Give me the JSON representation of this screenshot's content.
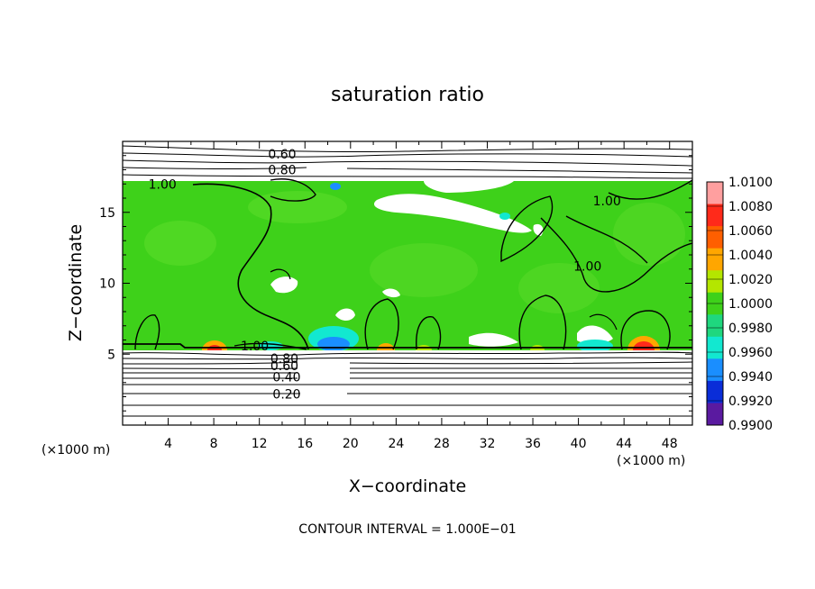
{
  "chart_data": {
    "type": "heatmap",
    "title": "saturation ratio",
    "xlabel": "X−coordinate",
    "ylabel": "Z−coordinate",
    "x_unit_left": "(×1000 m)",
    "x_unit_right": "(×1000 m)",
    "footer": "CONTOUR INTERVAL = 1.000E−01",
    "xlim": [
      0,
      50
    ],
    "ylim": [
      0,
      20
    ],
    "x_ticks": [
      4,
      8,
      12,
      16,
      20,
      24,
      28,
      32,
      36,
      40,
      44,
      48
    ],
    "y_ticks": [
      5,
      10,
      15
    ],
    "grid": false,
    "colorbar": {
      "range": [
        0.99,
        1.01
      ],
      "labels": [
        "1.0100",
        "1.0080",
        "1.0060",
        "1.0040",
        "1.0020",
        "1.0000",
        "0.9980",
        "0.9960",
        "0.9940",
        "0.9920",
        "0.9900"
      ],
      "colors": [
        "#ff9f9f",
        "#ff2a1a",
        "#ff5f00",
        "#ffa600",
        "#b4e600",
        "#3ed11a",
        "#1fd77e",
        "#12e8d0",
        "#1a8eff",
        "#0a2dd8",
        "#5a1aa0"
      ]
    },
    "contour_labels": [
      {
        "text": "0.60",
        "x": 14.0,
        "z": 19.1
      },
      {
        "text": "0.80",
        "x": 14.0,
        "z": 18.0
      },
      {
        "text": "1.00",
        "x": 3.5,
        "z": 17.0
      },
      {
        "text": "1.00",
        "x": 42.5,
        "z": 15.8
      },
      {
        "text": "1.00",
        "x": 40.8,
        "z": 11.2
      },
      {
        "text": "1.00",
        "x": 11.6,
        "z": 5.6
      },
      {
        "text": "0.80",
        "x": 14.2,
        "z": 4.7
      },
      {
        "text": "0.60",
        "x": 14.2,
        "z": 4.2
      },
      {
        "text": "0.40",
        "x": 14.4,
        "z": 3.4
      },
      {
        "text": "0.20",
        "x": 14.4,
        "z": 2.2
      }
    ]
  }
}
